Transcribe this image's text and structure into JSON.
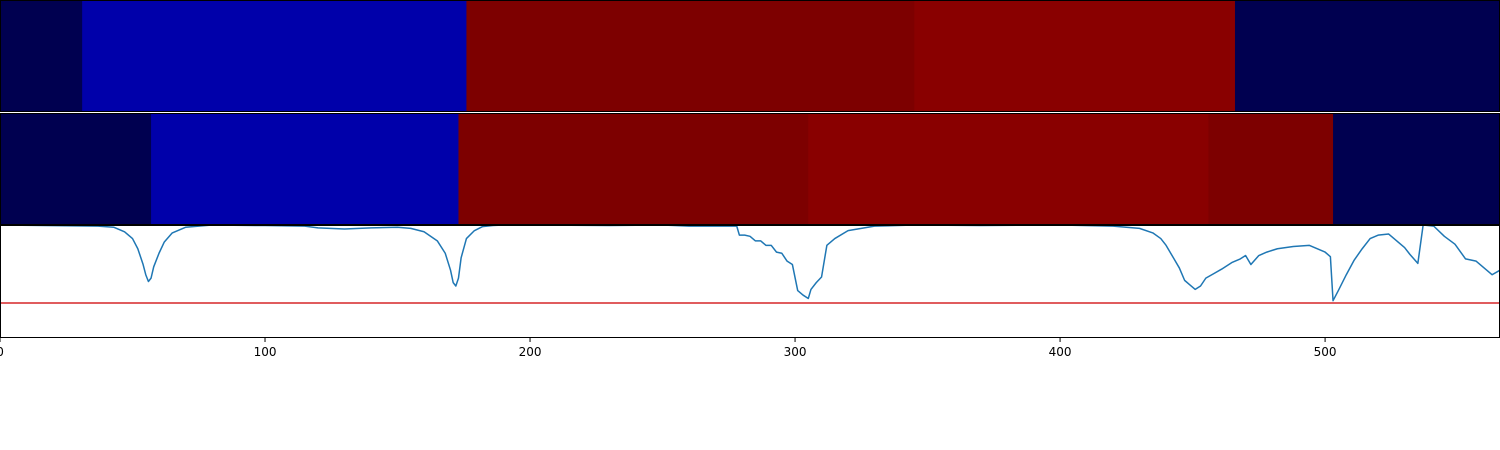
{
  "chart_data": [
    {
      "type": "heatmap",
      "xlim": [
        0,
        566
      ],
      "segments": [
        {
          "start": 0,
          "end": 31,
          "color": "#000050"
        },
        {
          "start": 31,
          "end": 176,
          "color": "#0000aa"
        },
        {
          "start": 176,
          "end": 345,
          "color": "#7d0000"
        },
        {
          "start": 345,
          "end": 466,
          "color": "#890000"
        },
        {
          "start": 466,
          "end": 566,
          "color": "#000050"
        }
      ]
    },
    {
      "type": "heatmap",
      "xlim": [
        0,
        566
      ],
      "segments": [
        {
          "start": 0,
          "end": 57,
          "color": "#000050"
        },
        {
          "start": 57,
          "end": 173,
          "color": "#0000aa"
        },
        {
          "start": 173,
          "end": 305,
          "color": "#7d0000"
        },
        {
          "start": 305,
          "end": 456,
          "color": "#890000"
        },
        {
          "start": 456,
          "end": 503,
          "color": "#7d0000"
        },
        {
          "start": 503,
          "end": 566,
          "color": "#000050"
        }
      ]
    },
    {
      "type": "line",
      "xlim": [
        0,
        566
      ],
      "ylim": [
        0,
        1
      ],
      "x_ticks": [
        0,
        100,
        200,
        300,
        400,
        500
      ],
      "x_tick_labels": [
        "0",
        "100",
        "200",
        "300",
        "400",
        "500"
      ],
      "grid": false,
      "threshold": {
        "value": 0.31,
        "color": "#d62728"
      },
      "series": [
        {
          "color": "#1f77b4",
          "x": [
            0,
            37,
            43,
            47,
            50,
            52,
            54,
            55,
            56,
            57,
            58,
            60,
            62,
            65,
            70,
            80,
            100,
            115,
            120,
            130,
            140,
            150,
            155,
            160,
            165,
            168,
            170,
            171,
            172,
            173,
            174,
            176,
            179,
            182,
            186,
            190,
            200,
            230,
            250,
            260,
            270,
            278,
            279,
            281,
            283,
            285,
            287,
            289,
            291,
            293,
            295,
            297,
            299,
            301,
            303,
            305,
            306,
            308,
            310,
            312,
            315,
            320,
            330,
            345,
            370,
            400,
            420,
            430,
            435,
            438,
            440,
            443,
            445,
            447,
            449,
            451,
            453,
            455,
            458,
            461,
            465,
            468,
            470,
            472,
            475,
            478,
            482,
            488,
            494,
            497,
            500,
            502,
            503,
            505,
            508,
            511,
            514,
            517,
            520,
            524,
            527,
            530,
            532,
            535,
            537,
            541,
            545,
            549,
            553,
            557,
            561,
            563,
            566
          ],
          "y": [
            1.0,
            0.99,
            0.98,
            0.94,
            0.88,
            0.79,
            0.65,
            0.56,
            0.5,
            0.53,
            0.63,
            0.75,
            0.85,
            0.93,
            0.98,
            1.0,
            0.995,
            0.99,
            0.975,
            0.965,
            0.975,
            0.98,
            0.97,
            0.94,
            0.86,
            0.75,
            0.6,
            0.49,
            0.46,
            0.53,
            0.71,
            0.88,
            0.95,
            0.985,
            0.995,
            1.0,
            1.0,
            0.995,
            1.0,
            0.99,
            0.99,
            0.99,
            0.91,
            0.91,
            0.9,
            0.86,
            0.86,
            0.82,
            0.82,
            0.76,
            0.75,
            0.68,
            0.65,
            0.42,
            0.38,
            0.35,
            0.43,
            0.49,
            0.54,
            0.82,
            0.88,
            0.95,
            0.99,
            1.0,
            0.995,
            1.0,
            0.99,
            0.97,
            0.93,
            0.88,
            0.82,
            0.7,
            0.62,
            0.51,
            0.47,
            0.43,
            0.46,
            0.53,
            0.57,
            0.61,
            0.67,
            0.7,
            0.73,
            0.65,
            0.73,
            0.76,
            0.79,
            0.81,
            0.82,
            0.79,
            0.76,
            0.72,
            0.33,
            0.42,
            0.56,
            0.69,
            0.79,
            0.88,
            0.91,
            0.92,
            0.86,
            0.8,
            0.74,
            0.66,
            1.0,
            0.99,
            0.9,
            0.83,
            0.7,
            0.68,
            0.6,
            0.56,
            0.6
          ]
        }
      ]
    }
  ]
}
